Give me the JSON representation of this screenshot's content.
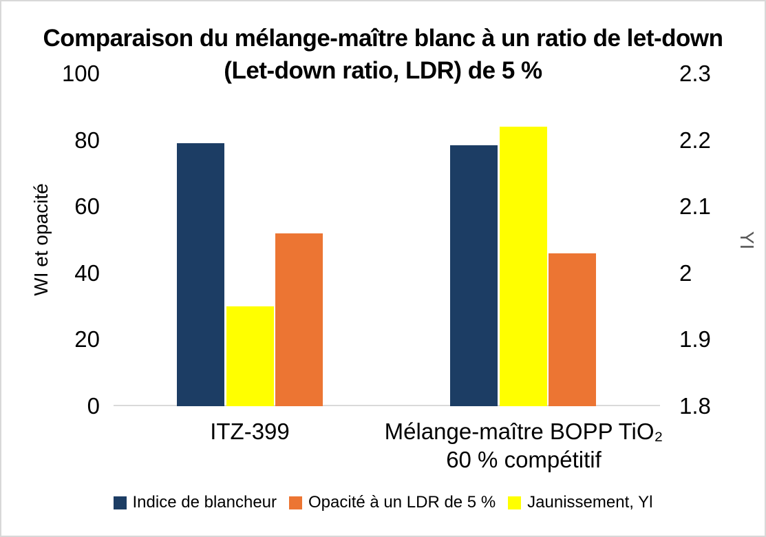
{
  "title": {
    "line1": "Comparaison du mélange-maître blanc à un ratio de let-down",
    "line2": "(Let-down ratio, LDR) de 5 %"
  },
  "left_axis": {
    "label": "WI et opacité",
    "tick_labels": [
      "0",
      "20",
      "40",
      "60",
      "80",
      "100"
    ],
    "tick_values": [
      0,
      20,
      40,
      60,
      80,
      100
    ],
    "min": 0,
    "max": 100
  },
  "right_axis": {
    "label": "YI",
    "tick_labels": [
      "1.8",
      "1.9",
      "2",
      "2.1",
      "2.2",
      "2.3"
    ],
    "tick_values": [
      1.8,
      1.9,
      2,
      2.1,
      2.2,
      2.3
    ],
    "min": 1.8,
    "max": 2.3
  },
  "colors": {
    "navy": "#1C3D64",
    "orange": "#EC7533",
    "yellow": "#FFFF00",
    "axis_line": "#D9D9D9",
    "right_axis_title": "#595959",
    "frame_border": "#D8D8D8"
  },
  "legend": {
    "items": [
      {
        "label": "Indice de blancheur",
        "color": "#1C3D64"
      },
      {
        "label": "Opacité à un LDR de 5 %",
        "color": "#EC7533"
      },
      {
        "label": "Jaunissement, Yl",
        "color": "#FFFF00"
      }
    ]
  },
  "category_labels": [
    [
      "ITZ-399"
    ],
    [
      "Mélange-maître BOPP TiO₂",
      "60 % compétitif"
    ]
  ],
  "chart_data": {
    "type": "bar",
    "title": "Comparaison du mélange-maître blanc à un ratio de let-down (Let-down ratio, LDR) de 5 %",
    "categories": [
      "ITZ-399",
      "Mélange-maître BOPP TiO₂ 60 % compétitif"
    ],
    "series": [
      {
        "name": "Indice de blancheur",
        "axis": "left",
        "color": "#1C3D64",
        "bar_position": 1,
        "values": [
          79,
          78.5
        ]
      },
      {
        "name": "Jaunissement, Yl",
        "axis": "right",
        "color": "#FFFF00",
        "bar_position": 2,
        "values": [
          1.95,
          2.22
        ]
      },
      {
        "name": "Opacité à un LDR de 5 %",
        "axis": "left",
        "color": "#EC7533",
        "bar_position": 3,
        "values": [
          52,
          46
        ]
      }
    ],
    "ylabel_left": "WI et opacité",
    "ylabel_right": "YI",
    "ylim_left": [
      0,
      100
    ],
    "ylim_right": [
      1.8,
      2.3
    ],
    "grid": false,
    "legend_position": "bottom"
  }
}
